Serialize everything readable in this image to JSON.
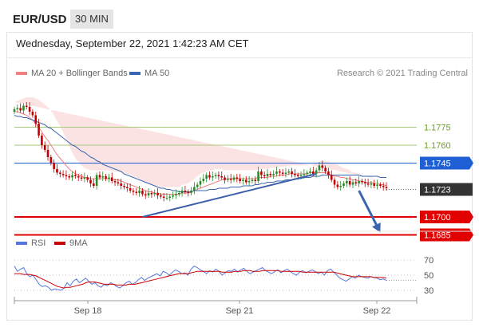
{
  "header": {
    "pair": "EUR/USD",
    "timeframe": "30 MIN",
    "datetime": "Wednesday, September 22, 2021 1:42:23 AM CET"
  },
  "legend": {
    "ma20_label": "MA 20 + Bollinger Bands",
    "ma50_label": "MA 50",
    "copyright": "Research © 2021 Trading Central",
    "rsi_label": "RSI",
    "ma9_label": "9MA"
  },
  "colors": {
    "ma20": "#f08080",
    "ma50": "#3a66b0",
    "rsi": "#5577dd",
    "ma9": "#cc0000",
    "up": "#2a8a2a",
    "down": "#c00000"
  },
  "chart_data": [
    {
      "type": "line",
      "name": "price",
      "x_ticks": [
        "Sep 18",
        "Sep 21",
        "Sep 22"
      ],
      "ylim": [
        1.168,
        1.18
      ],
      "close": [
        1.179,
        1.1791,
        1.1789,
        1.1793,
        1.1792,
        1.1788,
        1.1785,
        1.1778,
        1.1768,
        1.176,
        1.1756,
        1.175,
        1.1745,
        1.174,
        1.1737,
        1.1736,
        1.1735,
        1.1734,
        1.1733,
        1.1735,
        1.1734,
        1.1733,
        1.1732,
        1.1733,
        1.1731,
        1.1728,
        1.1726,
        1.1735,
        1.1733,
        1.1734,
        1.1732,
        1.1733,
        1.173,
        1.1729,
        1.1728,
        1.1726,
        1.1725,
        1.1724,
        1.1722,
        1.1721,
        1.172,
        1.1722,
        1.1719,
        1.1718,
        1.172,
        1.1719,
        1.172,
        1.1718,
        1.1717,
        1.1716,
        1.1716,
        1.1717,
        1.1718,
        1.1719,
        1.172,
        1.1722,
        1.1721,
        1.172,
        1.1722,
        1.1725,
        1.1727,
        1.173,
        1.1732,
        1.1735,
        1.1733,
        1.1734,
        1.1735,
        1.1734,
        1.1733,
        1.1731,
        1.1732,
        1.1731,
        1.1733,
        1.1732,
        1.173,
        1.1731,
        1.1729,
        1.173,
        1.1731,
        1.173,
        1.1738,
        1.1735,
        1.1734,
        1.1736,
        1.1735,
        1.1736,
        1.1738,
        1.1737,
        1.1736,
        1.1737,
        1.1738,
        1.1736,
        1.1735,
        1.1734,
        1.1735,
        1.1736,
        1.1737,
        1.1738,
        1.1736,
        1.1739,
        1.1743,
        1.1741,
        1.1738,
        1.1735,
        1.1731,
        1.1727,
        1.1725,
        1.1726,
        1.1728,
        1.173,
        1.1727,
        1.1729,
        1.1728,
        1.173,
        1.1729,
        1.1728,
        1.1727,
        1.1728,
        1.1726,
        1.1727,
        1.1726,
        1.1725,
        1.1724
      ],
      "ma20": [
        1.1788,
        1.1788,
        1.1787,
        1.1786,
        1.1785,
        1.1783,
        1.1781,
        1.1778,
        1.1775,
        1.1771,
        1.1767,
        1.1764,
        1.176,
        1.1756,
        1.1752,
        1.1749,
        1.1746,
        1.1743,
        1.174,
        1.1738,
        1.1736,
        1.1735,
        1.1734,
        1.1733,
        1.1733,
        1.1732,
        1.1732,
        1.1732,
        1.1732,
        1.1732,
        1.1732,
        1.1732,
        1.1731,
        1.1731,
        1.1731,
        1.173,
        1.1729,
        1.1728,
        1.1727,
        1.1726,
        1.1725,
        1.1724,
        1.1723,
        1.1722,
        1.1721,
        1.1721,
        1.172,
        1.172,
        1.1719,
        1.1719,
        1.1719,
        1.1719,
        1.1719,
        1.1719,
        1.1719,
        1.172,
        1.172,
        1.172,
        1.1721,
        1.1722,
        1.1723,
        1.1724,
        1.1725,
        1.1726,
        1.1727,
        1.1728,
        1.1729,
        1.173,
        1.1731,
        1.1731,
        1.1732,
        1.1732,
        1.1732,
        1.1732,
        1.1732,
        1.1732,
        1.1732,
        1.1732,
        1.1732,
        1.1732,
        1.1733,
        1.1733,
        1.1733,
        1.1733,
        1.1734,
        1.1734,
        1.1734,
        1.1735,
        1.1735,
        1.1735,
        1.1736,
        1.1736,
        1.1736,
        1.1736,
        1.1736,
        1.1736,
        1.1736,
        1.1737,
        1.1737,
        1.1737,
        1.1737,
        1.1737,
        1.1737,
        1.1736,
        1.1735,
        1.1734,
        1.1734,
        1.1733,
        1.1733,
        1.1732,
        1.1732,
        1.1731,
        1.1731,
        1.173,
        1.173,
        1.1729,
        1.1729,
        1.1729,
        1.1728,
        1.1728,
        1.1727,
        1.1727,
        1.1726
      ],
      "bb_width": [
        0.0008,
        0.0009,
        0.0011,
        0.0013,
        0.0015,
        0.0017,
        0.0019,
        0.0021,
        0.0023,
        0.0025,
        0.0027,
        0.0028,
        0.0029,
        0.0029,
        0.0028,
        0.0027,
        0.0025,
        0.0022,
        0.0019,
        0.0016,
        0.0013,
        0.0011,
        0.0009,
        0.0008,
        0.0007,
        0.0007,
        0.0007,
        0.0007,
        0.0007,
        0.0007,
        0.0007,
        0.0007,
        0.0007,
        0.0007,
        0.0007,
        0.0007,
        0.0008,
        0.0008,
        0.0008,
        0.0008,
        0.0008,
        0.0008,
        0.0007,
        0.0007,
        0.0007,
        0.0006,
        0.0006,
        0.0006,
        0.0006,
        0.0006,
        0.0006,
        0.0006,
        0.0006,
        0.0006,
        0.0006,
        0.0007,
        0.0007,
        0.0008,
        0.0009,
        0.001,
        0.0011,
        0.0012,
        0.0012,
        0.0012,
        0.0012,
        0.0011,
        0.0011,
        0.001,
        0.0009,
        0.0008,
        0.0007,
        0.0007,
        0.0007,
        0.0007,
        0.0007,
        0.0007,
        0.0007,
        0.0007,
        0.0007,
        0.0007,
        0.0007,
        0.0007,
        0.0007,
        0.0007,
        0.0007,
        0.0007,
        0.0007,
        0.0007,
        0.0007,
        0.0007,
        0.0007,
        0.0007,
        0.0007,
        0.0007,
        0.0007,
        0.0007,
        0.0007,
        0.0007,
        0.0007,
        0.0008,
        0.0009,
        0.001,
        0.001,
        0.001,
        0.001,
        0.001,
        0.001,
        0.0009,
        0.0008,
        0.0008,
        0.0007,
        0.0006,
        0.0006,
        0.0006,
        0.0005,
        0.0005,
        0.0005,
        0.0005,
        0.0004,
        0.0004,
        0.0004
      ],
      "ma50": [
        1.1785,
        1.1784,
        1.1784,
        1.1783,
        1.1783,
        1.1782,
        1.1781,
        1.178,
        1.1779,
        1.1778,
        1.1777,
        1.1775,
        1.1774,
        1.1772,
        1.177,
        1.1768,
        1.1766,
        1.1764,
        1.1762,
        1.176,
        1.1759,
        1.1757,
        1.1755,
        1.1754,
        1.1752,
        1.175,
        1.1749,
        1.1747,
        1.1746,
        1.1744,
        1.1743,
        1.1742,
        1.1741,
        1.174,
        1.1739,
        1.1738,
        1.1736,
        1.1735,
        1.1734,
        1.1733,
        1.1732,
        1.1731,
        1.173,
        1.1729,
        1.1728,
        1.1727,
        1.1726,
        1.1725,
        1.1724,
        1.1724,
        1.1723,
        1.1723,
        1.1722,
        1.1722,
        1.1721,
        1.1721,
        1.1721,
        1.1721,
        1.1721,
        1.1722,
        1.1722,
        1.1722,
        1.1722,
        1.1722,
        1.1723,
        1.1723,
        1.1723,
        1.1724,
        1.1724,
        1.1724,
        1.1724,
        1.1725,
        1.1725,
        1.1725,
        1.1725,
        1.1726,
        1.1726,
        1.1726,
        1.1726,
        1.1727,
        1.1727,
        1.1728,
        1.1728,
        1.1729,
        1.1729,
        1.1729,
        1.173,
        1.173,
        1.173,
        1.1731,
        1.1731,
        1.1731,
        1.1732,
        1.1732,
        1.1732,
        1.1733,
        1.1733,
        1.1733,
        1.1734,
        1.1734,
        1.1734,
        1.1735,
        1.1735,
        1.1735,
        1.1735,
        1.1735,
        1.1735,
        1.1735,
        1.1735,
        1.1735,
        1.1735,
        1.1735,
        1.1735,
        1.1735,
        1.1734,
        1.1734,
        1.1734,
        1.1734,
        1.1734,
        1.1734,
        1.1733,
        1.1733,
        1.1733
      ],
      "levels": [
        {
          "value": 1.1775,
          "label": "1.1775",
          "color": "#a8c87a",
          "style": "light"
        },
        {
          "value": 1.176,
          "label": "1.1760",
          "color": "#a8c87a",
          "style": "light"
        },
        {
          "value": 1.1745,
          "label": "1.1745",
          "color": "#1f5fd6",
          "style": "box"
        },
        {
          "value": 1.1723,
          "label": "1.1723",
          "color": "#333333",
          "style": "box-dotted"
        },
        {
          "value": 1.17,
          "label": "1.1700",
          "color": "#e00000",
          "style": "box"
        },
        {
          "value": 1.1685,
          "label": "1.1685",
          "color": "#e00000",
          "style": "box"
        }
      ],
      "trendline": [
        {
          "i": 42,
          "v": 1.17
        },
        {
          "i": 99,
          "v": 1.1736
        }
      ],
      "forecast_arrow": [
        {
          "i": 113,
          "v": 1.1722
        },
        {
          "i": 120,
          "v": 1.1687
        }
      ]
    },
    {
      "type": "line",
      "name": "rsi",
      "ylim": [
        20,
        80
      ],
      "y_ticks": [
        70,
        50,
        30
      ],
      "rsi": [
        62,
        55,
        58,
        60,
        52,
        48,
        50,
        44,
        38,
        35,
        36,
        34,
        30,
        32,
        31,
        30,
        33,
        40,
        36,
        42,
        45,
        40,
        43,
        46,
        42,
        38,
        40,
        36,
        34,
        38,
        36,
        40,
        38,
        35,
        33,
        36,
        40,
        42,
        38,
        40,
        44,
        47,
        43,
        46,
        48,
        50,
        52,
        49,
        55,
        53,
        50,
        54,
        57,
        55,
        52,
        53,
        50,
        58,
        62,
        60,
        57,
        55,
        52,
        56,
        54,
        58,
        55,
        50,
        53,
        56,
        55,
        58,
        54,
        57,
        59,
        55,
        52,
        54,
        56,
        58,
        60,
        56,
        54,
        52,
        55,
        57,
        53,
        56,
        58,
        55,
        52,
        50,
        54,
        56,
        53,
        55,
        57,
        55,
        52,
        54,
        50,
        56,
        58,
        54,
        50,
        46,
        44,
        42,
        45,
        48,
        46,
        50,
        48,
        47,
        46,
        48,
        47,
        46,
        44,
        45,
        43
      ],
      "ma9": [
        52,
        52,
        52,
        51,
        51,
        51,
        50,
        49,
        47,
        45,
        43,
        41,
        39,
        37,
        35,
        34,
        33,
        34,
        34,
        35,
        36,
        37,
        38,
        40,
        41,
        41,
        41,
        40,
        39,
        38,
        38,
        38,
        38,
        37,
        37,
        37,
        37,
        38,
        38,
        38,
        39,
        40,
        41,
        42,
        43,
        44,
        45,
        46,
        47,
        48,
        49,
        50,
        51,
        52,
        52,
        52,
        52,
        53,
        54,
        55,
        55,
        55,
        55,
        55,
        55,
        55,
        55,
        54,
        54,
        54,
        54,
        55,
        55,
        55,
        56,
        56,
        56,
        55,
        55,
        55,
        56,
        56,
        56,
        56,
        56,
        56,
        55,
        55,
        55,
        55,
        55,
        55,
        55,
        54,
        54,
        54,
        54,
        54,
        54,
        54,
        54,
        54,
        54,
        54,
        53,
        52,
        51,
        50,
        49,
        48,
        48,
        48,
        48,
        48,
        48,
        48,
        47,
        47,
        47,
        47,
        46
      ]
    }
  ]
}
